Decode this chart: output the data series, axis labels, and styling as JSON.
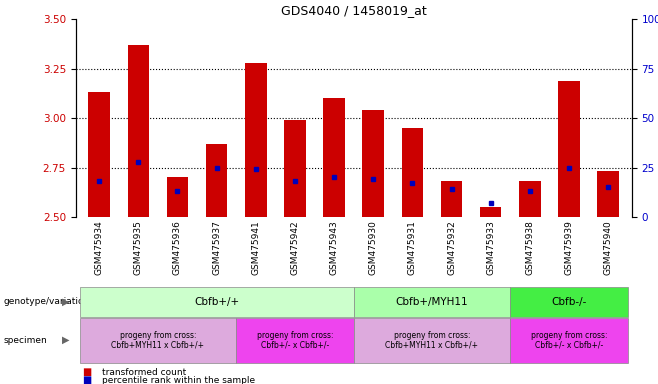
{
  "title": "GDS4040 / 1458019_at",
  "samples": [
    "GSM475934",
    "GSM475935",
    "GSM475936",
    "GSM475937",
    "GSM475941",
    "GSM475942",
    "GSM475943",
    "GSM475930",
    "GSM475931",
    "GSM475932",
    "GSM475933",
    "GSM475938",
    "GSM475939",
    "GSM475940"
  ],
  "bar_values": [
    3.13,
    3.37,
    2.7,
    2.87,
    3.28,
    2.99,
    3.1,
    3.04,
    2.95,
    2.68,
    2.55,
    2.68,
    3.19,
    2.73
  ],
  "percentile_values": [
    2.68,
    2.78,
    2.63,
    2.75,
    2.74,
    2.68,
    2.7,
    2.69,
    2.67,
    2.64,
    2.57,
    2.63,
    2.75,
    2.65
  ],
  "ylim_left": [
    2.5,
    3.5
  ],
  "yticks_left": [
    2.5,
    2.75,
    3.0,
    3.25,
    3.5
  ],
  "yticks_right": [
    0,
    25,
    50,
    75,
    100
  ],
  "bar_color": "#cc0000",
  "percentile_color": "#0000bb",
  "genotype_groups": [
    {
      "label": "Cbfb+/+",
      "start": 0,
      "end": 6,
      "color": "#ccffcc"
    },
    {
      "label": "Cbfb+/MYH11",
      "start": 7,
      "end": 10,
      "color": "#aaffaa"
    },
    {
      "label": "Cbfb-/-",
      "start": 11,
      "end": 13,
      "color": "#44ee44"
    }
  ],
  "specimen_groups": [
    {
      "label": "progeny from cross:\nCbfb+MYH11 x Cbfb+/+",
      "start": 0,
      "end": 3,
      "color": "#ddaadd"
    },
    {
      "label": "progeny from cross:\nCbfb+/- x Cbfb+/-",
      "start": 4,
      "end": 6,
      "color": "#ee44ee"
    },
    {
      "label": "progeny from cross:\nCbfb+MYH11 x Cbfb+/+",
      "start": 7,
      "end": 10,
      "color": "#ddaadd"
    },
    {
      "label": "progeny from cross:\nCbfb+/- x Cbfb+/-",
      "start": 11,
      "end": 13,
      "color": "#ee44ee"
    }
  ]
}
